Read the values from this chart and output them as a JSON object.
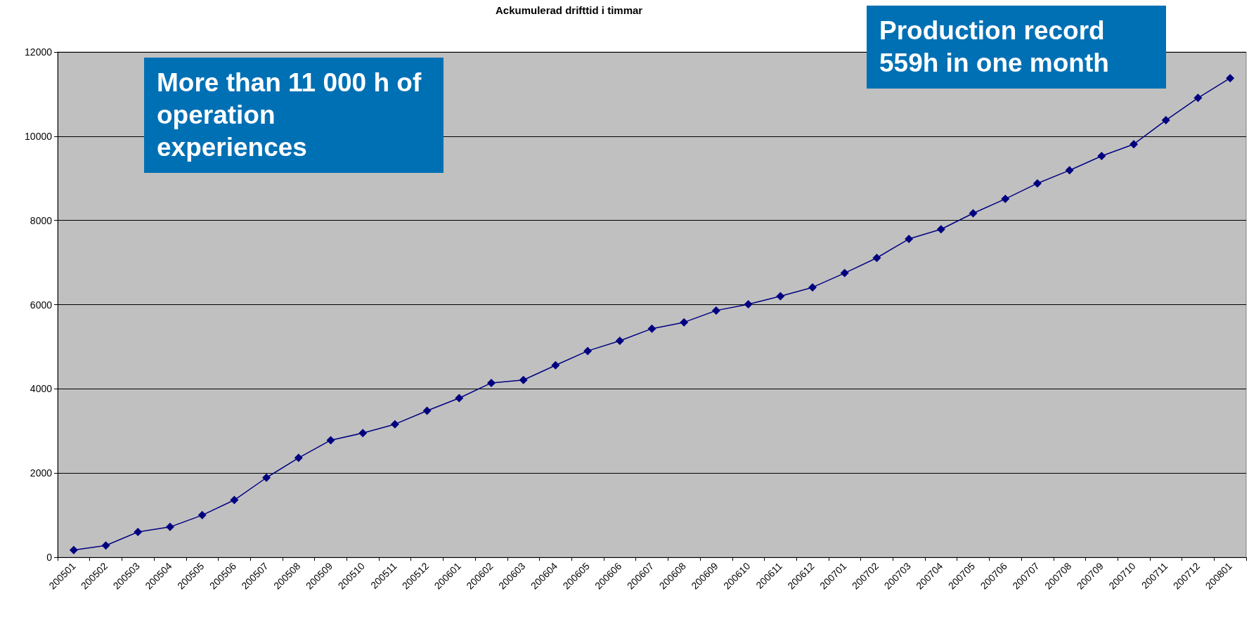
{
  "chart_data": {
    "type": "line",
    "title": "Ackumulerad drifttid i timmar",
    "categories": [
      "200501",
      "200502",
      "200503",
      "200504",
      "200505",
      "200506",
      "200507",
      "200508",
      "200509",
      "200510",
      "200511",
      "200512",
      "200601",
      "200602",
      "200603",
      "200604",
      "200605",
      "200606",
      "200607",
      "200608",
      "200609",
      "200610",
      "200611",
      "200612",
      "200701",
      "200702",
      "200703",
      "200704",
      "200705",
      "200706",
      "200707",
      "200708",
      "200709",
      "200710",
      "200711",
      "200712",
      "200801"
    ],
    "series": [
      {
        "color": "#000080",
        "values": [
          170,
          280,
          600,
          720,
          1000,
          1360,
          1890,
          2360,
          2780,
          2950,
          3160,
          3480,
          3780,
          4140,
          4210,
          4560,
          4900,
          5140,
          5430,
          5580,
          5860,
          6010,
          6200,
          6410,
          6750,
          7110,
          7560,
          7790,
          8170,
          8510,
          8880,
          9190,
          9530,
          9810,
          10380,
          10910,
          11380
        ]
      }
    ],
    "ylim": [
      0,
      12000
    ],
    "yticks": [
      0,
      2000,
      4000,
      6000,
      8000,
      10000,
      12000
    ],
    "grid": "y",
    "marker": "diamond",
    "line_style": "solid",
    "annotations": [
      "More than 11 000 h of operation experiences",
      "Production record 559h in one month"
    ]
  }
}
